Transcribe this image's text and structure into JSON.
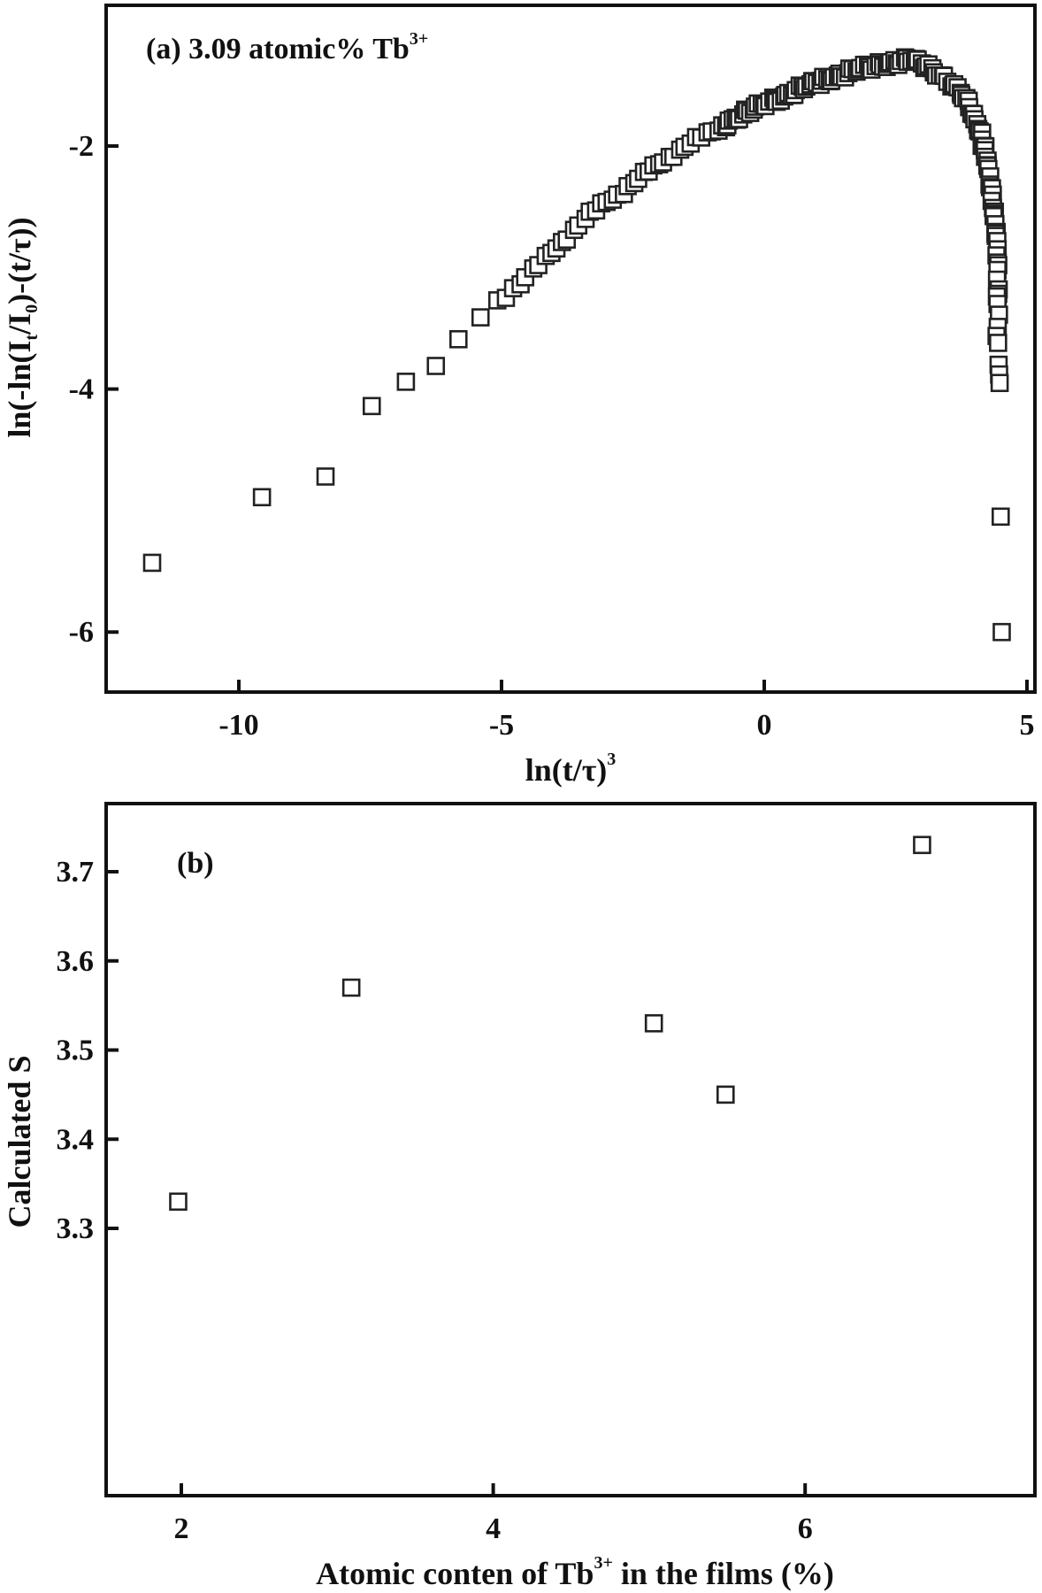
{
  "chart_data": [
    {
      "type": "scatter",
      "panel": "a",
      "title": "(a) 3.09 atomic% Tb3+",
      "annotation": {
        "text": "(a) 3.09 atomic% Tb",
        "sup": "3+"
      },
      "xlabel": "ln(t/τ)",
      "xlabel_sup": "3",
      "ylabel": "ln(-ln(I_t/I_0)-(t/τ))",
      "xlim": [
        -12.5,
        5.2
      ],
      "ylim": [
        -6.5,
        -0.8
      ],
      "xticks": [
        -10,
        -5,
        0,
        5
      ],
      "xtick_labels": [
        "-10",
        "-5",
        "0",
        "5"
      ],
      "yticks": [
        -2,
        -4,
        -6
      ],
      "ytick_labels": [
        "-2",
        "-4",
        "-6"
      ],
      "grid": false,
      "legend": null,
      "marker": "open-square",
      "series": [
        {
          "name": "3.09 atomic% Tb3+",
          "x": [
            -11.65,
            -9.56,
            -8.35,
            -7.47,
            -6.82,
            -6.25,
            -5.82,
            -5.4,
            -5.08,
            -4.78,
            -4.55,
            -4.3,
            -4.05,
            -3.85,
            -3.62,
            -3.4,
            -3.2,
            -3.0,
            -2.8,
            -2.6,
            -2.4,
            -2.2,
            -2.0,
            -1.8,
            -1.6,
            -1.4,
            -1.2,
            -1.0,
            -0.8,
            -0.6,
            -0.4,
            -0.2,
            0.0,
            0.2,
            0.4,
            0.6,
            0.8,
            1.0,
            1.2,
            1.4,
            1.6,
            1.8,
            2.0,
            2.2,
            2.4,
            2.6,
            2.8,
            3.0,
            3.2,
            3.4,
            3.6,
            3.75,
            3.9,
            4.0,
            4.1,
            4.18,
            4.25,
            4.3,
            4.35,
            4.38,
            4.4,
            4.42,
            4.43,
            4.44,
            4.45,
            4.46,
            4.47,
            4.48,
            4.5,
            4.52
          ],
          "y": [
            -5.43,
            -4.89,
            -4.72,
            -4.14,
            -3.94,
            -3.81,
            -3.59,
            -3.41,
            -3.27,
            -3.17,
            -3.08,
            -2.98,
            -2.88,
            -2.79,
            -2.69,
            -2.6,
            -2.53,
            -2.46,
            -2.4,
            -2.33,
            -2.27,
            -2.21,
            -2.15,
            -2.09,
            -2.03,
            -1.98,
            -1.93,
            -1.88,
            -1.83,
            -1.78,
            -1.74,
            -1.7,
            -1.66,
            -1.62,
            -1.58,
            -1.54,
            -1.51,
            -1.48,
            -1.45,
            -1.42,
            -1.4,
            -1.37,
            -1.35,
            -1.33,
            -1.31,
            -1.3,
            -1.3,
            -1.32,
            -1.36,
            -1.42,
            -1.5,
            -1.58,
            -1.68,
            -1.78,
            -1.88,
            -2.0,
            -2.12,
            -2.25,
            -2.4,
            -2.56,
            -2.72,
            -2.9,
            -3.1,
            -3.3,
            -3.62,
            -3.8,
            -3.88,
            -3.95,
            -5.05,
            -6.0
          ]
        }
      ]
    },
    {
      "type": "scatter",
      "panel": "b",
      "title": "(b)",
      "annotation": {
        "text": "(b)"
      },
      "xlabel": "Atomic conten of Tb",
      "xlabel_sup": "3+",
      "xlabel_suffix": " in the films (%)",
      "ylabel": "Calculated S",
      "xlim": [
        1.3,
        7.3
      ],
      "ylim": [
        3.25,
        3.76
      ],
      "xticks": [
        2,
        4,
        6
      ],
      "xtick_labels": [
        "2",
        "4",
        "6"
      ],
      "yticks": [
        3.3,
        3.4,
        3.5,
        3.6,
        3.7
      ],
      "ytick_labels": [
        "3.3",
        "3.4",
        "3.5",
        "3.6",
        "3.7"
      ],
      "grid": false,
      "legend": null,
      "marker": "open-square",
      "series": [
        {
          "name": "Calculated S",
          "x": [
            1.98,
            3.09,
            5.03,
            5.49,
            6.75
          ],
          "y": [
            3.33,
            3.57,
            3.53,
            3.45,
            3.73
          ]
        }
      ]
    }
  ],
  "panels": {
    "a": {
      "label": "(a) 3.09 atomic% Tb",
      "label_sup": "3+",
      "xaxis_title": "ln(t/τ)",
      "xaxis_title_sup": "3",
      "yaxis_title": "ln(-ln(I",
      "yaxis_title_full": "ln(-ln(It/I0)-(t/τ))",
      "xticks": [
        "-10",
        "-5",
        "0",
        "5"
      ],
      "yticks": [
        "-2",
        "-4",
        "-6"
      ]
    },
    "b": {
      "label": "(b)",
      "xaxis_title": "Atomic conten of Tb",
      "xaxis_title_sup": "3+",
      "xaxis_title_suffix": " in the films (%)",
      "yaxis_title": "Calculated S",
      "xticks": [
        "2",
        "4",
        "6"
      ],
      "yticks": [
        "3.7",
        "3.6",
        "3.5",
        "3.4",
        "3.3"
      ]
    }
  },
  "colors": {
    "axis": "#111111",
    "marker_stroke": "#222222",
    "marker_fill": "#ffffff",
    "background": "#ffffff"
  }
}
